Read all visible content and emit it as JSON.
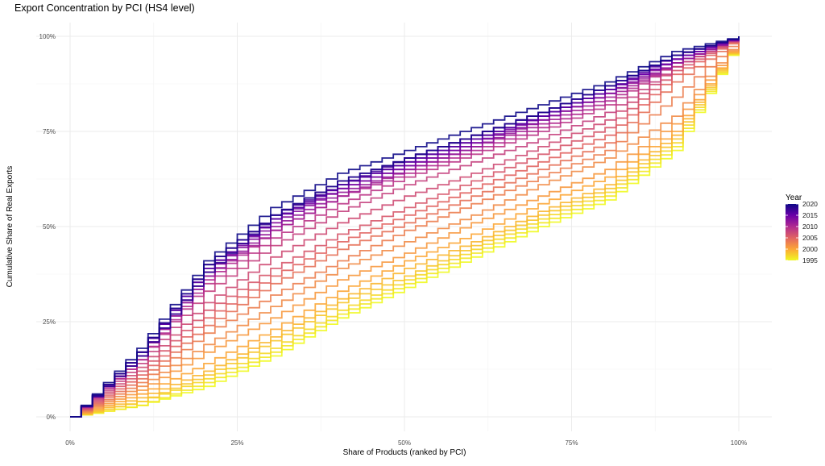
{
  "chart_data": {
    "type": "line",
    "title": "Export Concentration by PCI (HS4 level)",
    "xlabel": "Share of Products (ranked by PCI)",
    "ylabel": "Cumulative Share of Real Exports",
    "xlim": [
      0,
      1
    ],
    "ylim": [
      0,
      1
    ],
    "x_ticks": [
      {
        "v": 0,
        "label": "0%"
      },
      {
        "v": 0.25,
        "label": "25%"
      },
      {
        "v": 0.5,
        "label": "50%"
      },
      {
        "v": 0.75,
        "label": "75%"
      },
      {
        "v": 1,
        "label": "100%"
      }
    ],
    "y_ticks": [
      {
        "v": 0,
        "label": "0%"
      },
      {
        "v": 0.25,
        "label": "25%"
      },
      {
        "v": 0.5,
        "label": "50%"
      },
      {
        "v": 0.75,
        "label": "75%"
      },
      {
        "v": 1,
        "label": "100%"
      }
    ],
    "grid": true,
    "legend": {
      "title": "Year",
      "placement": "right",
      "ticks": [
        "2020",
        "2015",
        "2010",
        "2005",
        "2000",
        "1995"
      ],
      "range": [
        1995,
        2020
      ]
    },
    "colormap": [
      "#0d0887",
      "#6a00a8",
      "#b12a90",
      "#e16462",
      "#fca636",
      "#f0f921"
    ],
    "x": [
      0,
      0.1,
      0.2,
      0.3,
      0.4,
      0.5,
      0.6,
      0.7,
      0.8,
      0.9,
      1
    ],
    "series": [
      {
        "year": 1995,
        "values": [
          0,
          0.03,
          0.08,
          0.16,
          0.26,
          0.34,
          0.42,
          0.5,
          0.57,
          0.7,
          1
        ]
      },
      {
        "year": 1996,
        "values": [
          0,
          0.03,
          0.09,
          0.17,
          0.27,
          0.35,
          0.43,
          0.51,
          0.58,
          0.71,
          1
        ]
      },
      {
        "year": 1997,
        "values": [
          0,
          0.04,
          0.1,
          0.18,
          0.28,
          0.36,
          0.44,
          0.52,
          0.59,
          0.72,
          1
        ]
      },
      {
        "year": 1998,
        "values": [
          0,
          0.04,
          0.11,
          0.2,
          0.3,
          0.37,
          0.45,
          0.53,
          0.6,
          0.73,
          1
        ]
      },
      {
        "year": 1999,
        "values": [
          0,
          0.05,
          0.12,
          0.21,
          0.31,
          0.39,
          0.46,
          0.54,
          0.61,
          0.74,
          1
        ]
      },
      {
        "year": 2000,
        "values": [
          0,
          0.06,
          0.14,
          0.23,
          0.33,
          0.41,
          0.48,
          0.56,
          0.63,
          0.75,
          1
        ]
      },
      {
        "year": 2001,
        "values": [
          0,
          0.07,
          0.17,
          0.26,
          0.36,
          0.43,
          0.51,
          0.58,
          0.65,
          0.77,
          1
        ]
      },
      {
        "year": 2002,
        "values": [
          0,
          0.08,
          0.19,
          0.29,
          0.39,
          0.46,
          0.53,
          0.61,
          0.68,
          0.79,
          1
        ]
      },
      {
        "year": 2003,
        "values": [
          0,
          0.09,
          0.22,
          0.32,
          0.41,
          0.49,
          0.56,
          0.63,
          0.7,
          0.84,
          1
        ]
      },
      {
        "year": 2004,
        "values": [
          0,
          0.1,
          0.24,
          0.35,
          0.44,
          0.51,
          0.58,
          0.65,
          0.72,
          0.88,
          1
        ]
      },
      {
        "year": 2005,
        "values": [
          0,
          0.11,
          0.26,
          0.37,
          0.46,
          0.53,
          0.6,
          0.67,
          0.74,
          0.9,
          1
        ]
      },
      {
        "year": 2006,
        "values": [
          0,
          0.12,
          0.28,
          0.39,
          0.48,
          0.55,
          0.62,
          0.69,
          0.76,
          0.91,
          1
        ]
      },
      {
        "year": 2007,
        "values": [
          0,
          0.13,
          0.3,
          0.42,
          0.51,
          0.58,
          0.64,
          0.71,
          0.78,
          0.92,
          1
        ]
      },
      {
        "year": 2008,
        "values": [
          0,
          0.14,
          0.33,
          0.45,
          0.54,
          0.61,
          0.67,
          0.73,
          0.8,
          0.92,
          1
        ]
      },
      {
        "year": 2009,
        "values": [
          0,
          0.15,
          0.35,
          0.47,
          0.56,
          0.63,
          0.69,
          0.75,
          0.82,
          0.93,
          1
        ]
      },
      {
        "year": 2010,
        "values": [
          0,
          0.15,
          0.36,
          0.49,
          0.58,
          0.64,
          0.7,
          0.76,
          0.83,
          0.93,
          1
        ]
      },
      {
        "year": 2011,
        "values": [
          0,
          0.16,
          0.37,
          0.49,
          0.58,
          0.65,
          0.71,
          0.77,
          0.84,
          0.93,
          1
        ]
      },
      {
        "year": 2012,
        "values": [
          0,
          0.16,
          0.37,
          0.5,
          0.59,
          0.65,
          0.71,
          0.78,
          0.85,
          0.93,
          1
        ]
      },
      {
        "year": 2013,
        "values": [
          0,
          0.16,
          0.38,
          0.51,
          0.6,
          0.66,
          0.72,
          0.78,
          0.85,
          0.94,
          1
        ]
      },
      {
        "year": 2014,
        "values": [
          0,
          0.16,
          0.38,
          0.52,
          0.6,
          0.66,
          0.72,
          0.79,
          0.86,
          0.94,
          1
        ]
      },
      {
        "year": 2015,
        "values": [
          0,
          0.17,
          0.39,
          0.52,
          0.61,
          0.67,
          0.73,
          0.79,
          0.86,
          0.94,
          1
        ]
      },
      {
        "year": 2016,
        "values": [
          0,
          0.17,
          0.39,
          0.52,
          0.61,
          0.67,
          0.73,
          0.79,
          0.86,
          0.95,
          1
        ]
      },
      {
        "year": 2017,
        "values": [
          0,
          0.17,
          0.4,
          0.53,
          0.61,
          0.68,
          0.74,
          0.8,
          0.87,
          0.95,
          1
        ]
      },
      {
        "year": 2018,
        "values": [
          0,
          0.16,
          0.38,
          0.53,
          0.62,
          0.68,
          0.74,
          0.8,
          0.87,
          0.95,
          1
        ]
      },
      {
        "year": 2019,
        "values": [
          0,
          0.17,
          0.4,
          0.53,
          0.62,
          0.68,
          0.74,
          0.8,
          0.87,
          0.95,
          1
        ]
      },
      {
        "year": 2020,
        "values": [
          0,
          0.18,
          0.41,
          0.55,
          0.64,
          0.7,
          0.76,
          0.82,
          0.88,
          0.96,
          1
        ]
      }
    ]
  }
}
